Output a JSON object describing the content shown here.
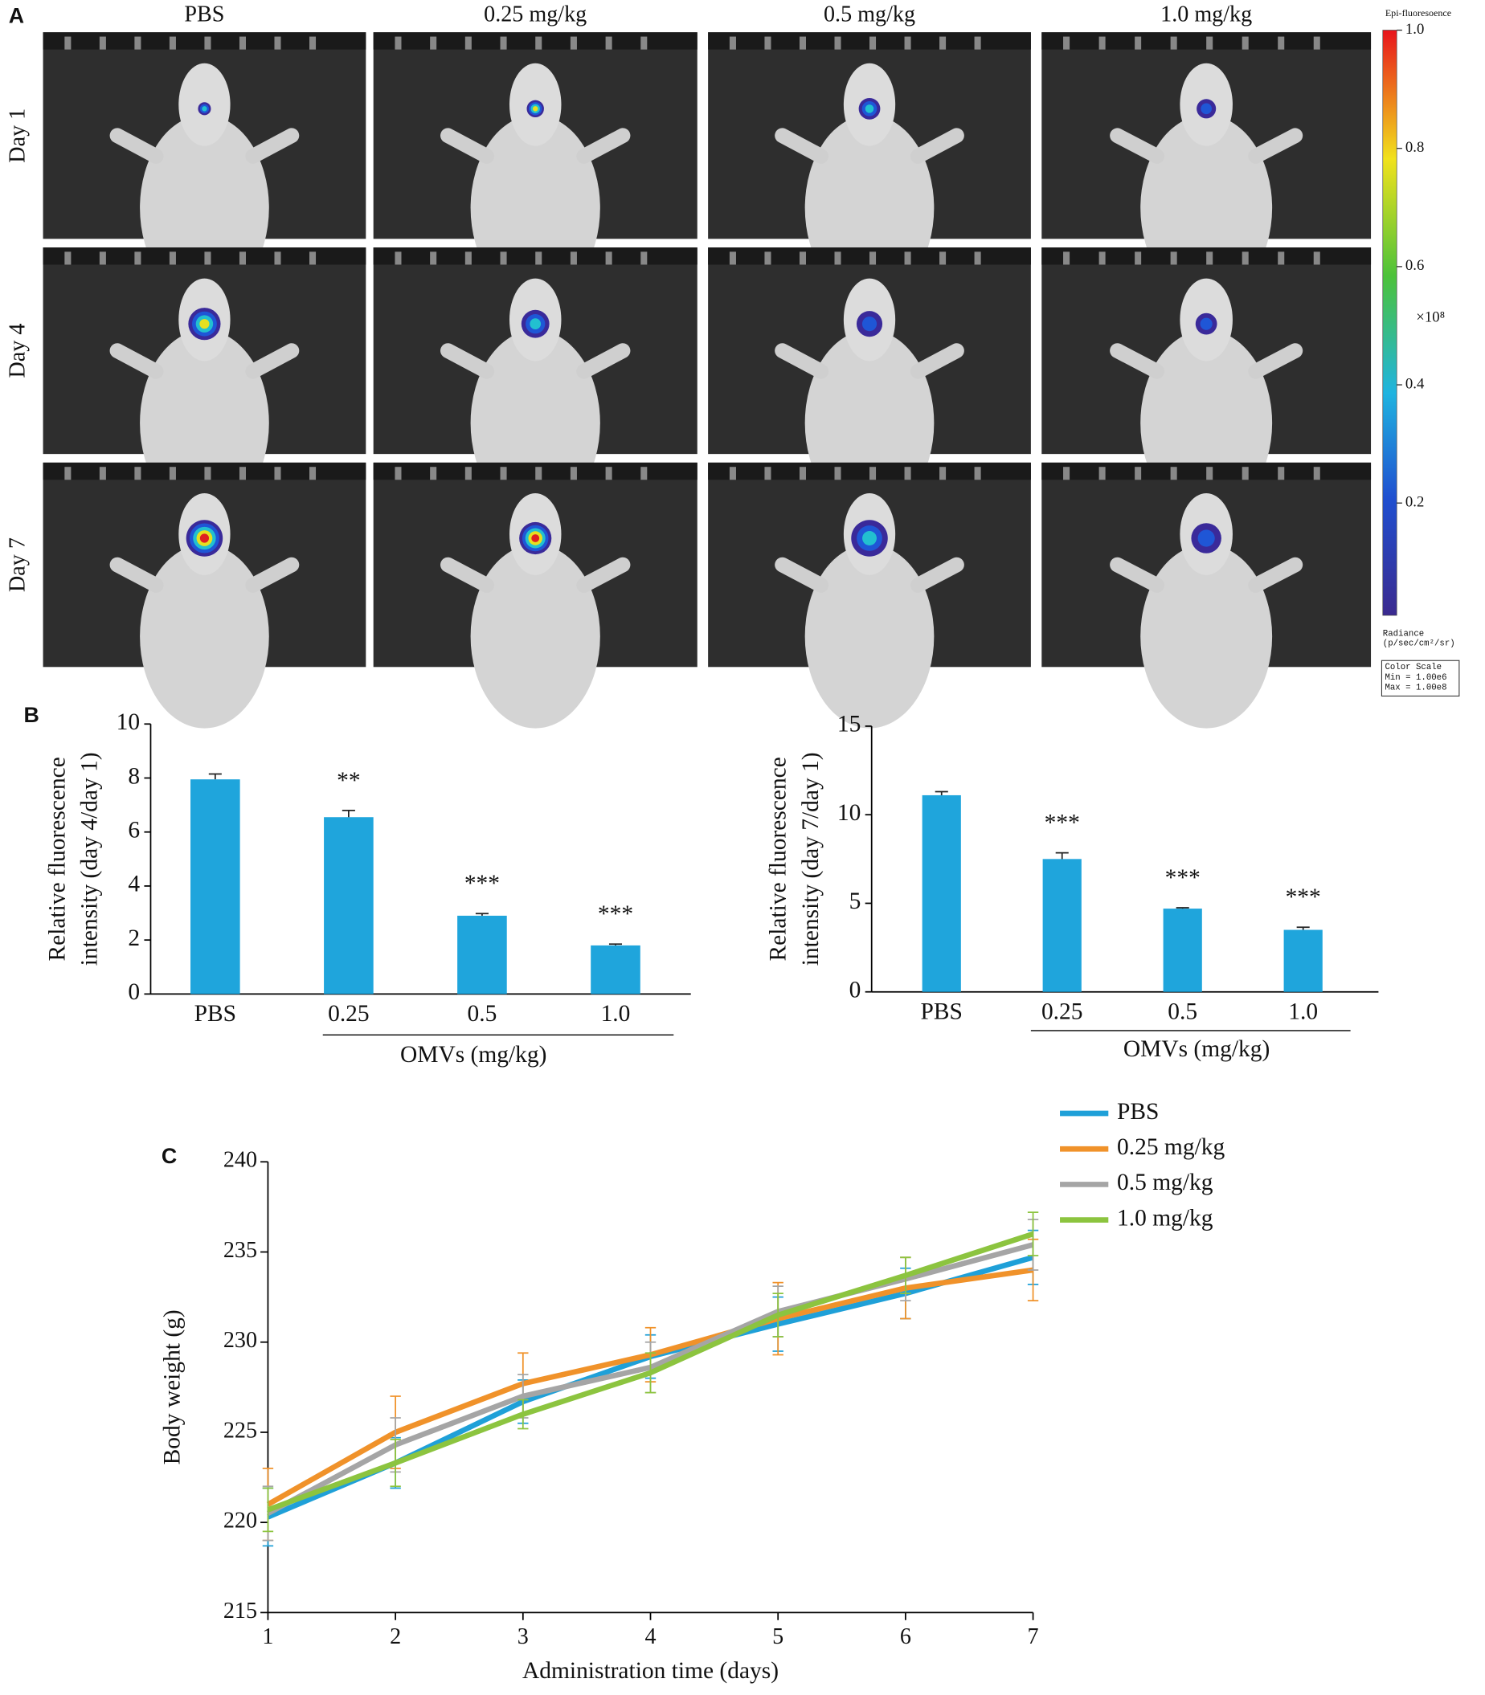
{
  "panel_a": {
    "label": "A",
    "columns": [
      "PBS",
      "0.25 mg/kg",
      "0.5 mg/kg",
      "1.0 mg/kg"
    ],
    "rows": [
      "Day 1",
      "Day 4",
      "Day 7"
    ],
    "colorbar": {
      "title": "Epi-fluoresoence",
      "lim": [
        0.01,
        1.0
      ],
      "ticks": [
        0.2,
        0.4,
        0.6,
        0.8,
        {
          "value": 1.0,
          "label": "1.0"
        }
      ],
      "exponent": "×10⁸",
      "unit_lines": [
        "Radiance",
        "(p/sec/cm²/sr)"
      ],
      "scale_lines": [
        "Color Scale",
        "Min = 1.00e6",
        "Max = 1.00e8"
      ]
    }
  },
  "chart_data": [
    {
      "type": "bar",
      "panel": "B",
      "categories": [
        "PBS",
        "0.25",
        "0.5",
        "1.0"
      ],
      "values": [
        7.95,
        6.55,
        2.9,
        1.8
      ],
      "errors": [
        0.2,
        0.25,
        0.08,
        0.05
      ],
      "annotations": [
        null,
        "**",
        "***",
        "***"
      ],
      "color": "#1fa5dc",
      "ylabel": [
        "Relative fluorescence",
        "intensity (day 4/day 1)"
      ],
      "xlabel": "OMVs (mg/kg)",
      "ylim": [
        0,
        10
      ],
      "yticks": [
        0,
        2,
        4,
        6,
        8,
        10
      ]
    },
    {
      "type": "bar",
      "categories": [
        "PBS",
        "0.25",
        "0.5",
        "1.0"
      ],
      "values": [
        11.1,
        7.5,
        4.7,
        3.5
      ],
      "errors": [
        0.2,
        0.35,
        0.05,
        0.15
      ],
      "annotations": [
        null,
        "***",
        "***",
        "***"
      ],
      "color": "#1fa5dc",
      "ylabel": [
        "Relative fluorescence",
        "intensity (day 7/day 1)"
      ],
      "xlabel": "OMVs (mg/kg)",
      "ylim": [
        0,
        15
      ],
      "yticks": [
        0,
        5,
        10,
        15
      ]
    },
    {
      "type": "line",
      "panel": "C",
      "x": [
        1,
        2,
        3,
        4,
        5,
        6,
        7
      ],
      "xlim": [
        1,
        7
      ],
      "xticks": [
        1,
        2,
        3,
        4,
        5,
        6,
        7
      ],
      "ylim": [
        215,
        240
      ],
      "yticks": [
        215,
        220,
        225,
        230,
        235,
        240
      ],
      "xlabel": "Administration time (days)",
      "ylabel": "Body weight (g)",
      "series": [
        {
          "name": "PBS",
          "color": "#1fa0d8",
          "values": [
            220.3,
            223.3,
            226.7,
            229.2,
            231.0,
            232.7,
            234.7
          ],
          "errors": [
            1.6,
            1.4,
            1.2,
            1.2,
            1.5,
            1.4,
            1.5
          ]
        },
        {
          "name": "0.25 mg/kg",
          "color": "#f0922a",
          "values": [
            221.0,
            225.0,
            227.7,
            229.3,
            231.3,
            233.0,
            234.0
          ],
          "errors": [
            2.0,
            2.0,
            1.7,
            1.5,
            2.0,
            1.7,
            1.7
          ]
        },
        {
          "name": "0.5 mg/kg",
          "color": "#a5a5a5",
          "values": [
            220.5,
            224.3,
            227.0,
            228.6,
            231.7,
            233.5,
            235.4
          ],
          "errors": [
            1.5,
            1.5,
            1.2,
            1.4,
            1.4,
            1.2,
            1.4
          ]
        },
        {
          "name": "1.0 mg/kg",
          "color": "#8cc43f",
          "values": [
            220.7,
            223.3,
            226.0,
            228.3,
            231.5,
            233.7,
            236.0
          ],
          "errors": [
            1.2,
            1.3,
            0.8,
            1.1,
            1.2,
            1.0,
            1.2
          ]
        }
      ]
    }
  ]
}
